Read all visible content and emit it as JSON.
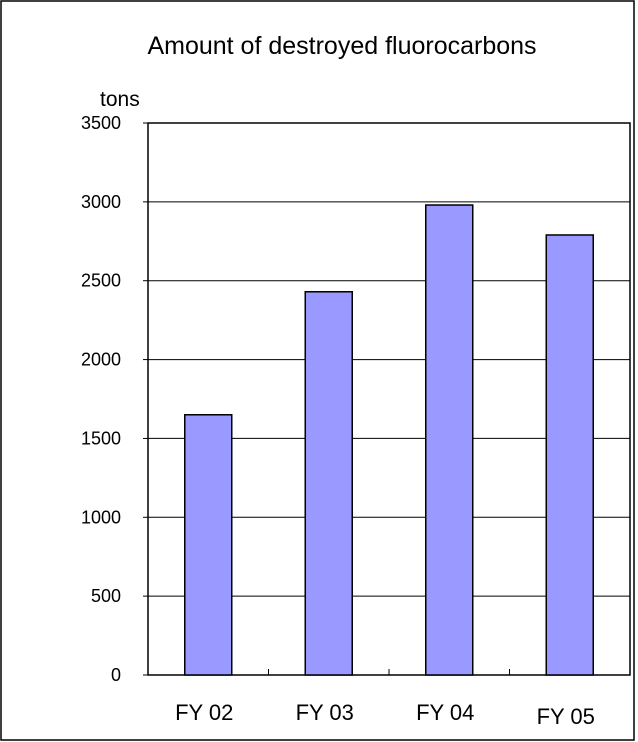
{
  "chart_data": {
    "type": "bar",
    "title": "Amount of destroyed fluorocarbons",
    "ylabel": "tons",
    "xlabel": "",
    "categories": [
      "FY 02",
      "FY 03",
      "FY 04",
      "FY 05"
    ],
    "values": [
      1650,
      2430,
      2980,
      2790
    ],
    "ylim": [
      0,
      3500
    ],
    "yticks": [
      0,
      500,
      1000,
      1500,
      2000,
      2500,
      3000,
      3500
    ],
    "grid": true,
    "legend": "none",
    "bar_color": "#9999ff",
    "edge_color": "#000000"
  }
}
